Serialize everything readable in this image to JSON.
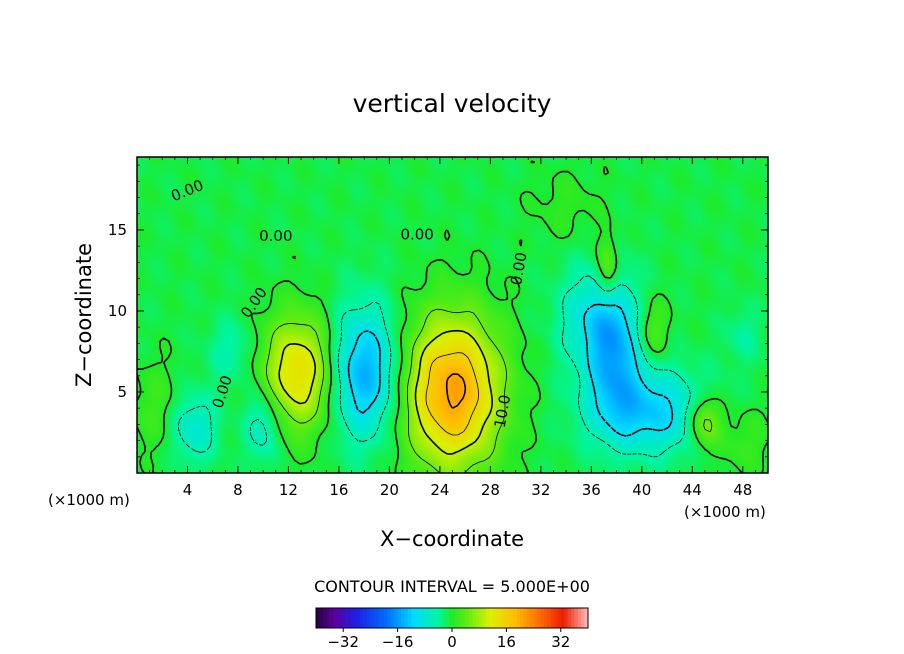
{
  "chart_data": {
    "type": "heatmap",
    "title": "vertical velocity",
    "xlabel": "X−coordinate",
    "ylabel": "Z−coordinate",
    "x_unit": "(×1000 m)",
    "z_unit": "(×1000 m)",
    "xlim": [
      0,
      50
    ],
    "ylim": [
      0,
      19.5
    ],
    "x_ticks": [
      4,
      8,
      12,
      16,
      20,
      24,
      28,
      32,
      36,
      40,
      44,
      48
    ],
    "y_ticks": [
      5,
      10,
      15
    ],
    "x_tick_labels": [
      "4",
      "8",
      "12",
      "16",
      "20",
      "24",
      "28",
      "32",
      "36",
      "40",
      "44",
      "48"
    ],
    "y_tick_labels": [
      "5",
      "10",
      "15"
    ],
    "contour_interval": "CONTOUR INTERVAL = 5.000E+00",
    "contour_labels": [
      {
        "text": "0.00",
        "x": 4.0,
        "z": 17.4,
        "angle": -22
      },
      {
        "text": "0.00",
        "x": 11.0,
        "z": 14.6,
        "angle": 0
      },
      {
        "text": "0.00",
        "x": 22.2,
        "z": 14.7,
        "angle": 0
      },
      {
        "text": "0.00",
        "x": 30.3,
        "z": 12.6,
        "angle": -80
      },
      {
        "text": "0.00",
        "x": 9.3,
        "z": 10.5,
        "angle": -55
      },
      {
        "text": "0.00",
        "x": 6.8,
        "z": 5.0,
        "angle": -72
      },
      {
        "text": "10.0",
        "x": 29.0,
        "z": 3.8,
        "angle": -80
      }
    ],
    "field": {
      "background": -1,
      "features": [
        {
          "x": 4.5,
          "z": 2.8,
          "amp": -7,
          "sx": 1.3,
          "sz": 1.5
        },
        {
          "x": 10.0,
          "z": 3.0,
          "amp": -7,
          "sx": 1.0,
          "sz": 1.6
        },
        {
          "x": 7.5,
          "z": 7.5,
          "amp": -4,
          "sx": 1.3,
          "sz": 1.4
        },
        {
          "x": 12.8,
          "z": 6.2,
          "amp": 15,
          "sx": 2.0,
          "sz": 2.4
        },
        {
          "x": 18.0,
          "z": 6.2,
          "amp": -14,
          "sx": 1.9,
          "sz": 2.8
        },
        {
          "x": 25.0,
          "z": 5.0,
          "amp": 22,
          "sx": 2.6,
          "sz": 3.2
        },
        {
          "x": 37.8,
          "z": 7.8,
          "amp": -13,
          "sx": 1.5,
          "sz": 2.8
        },
        {
          "x": 40.5,
          "z": 3.8,
          "amp": -11,
          "sx": 3.2,
          "sz": 1.8
        },
        {
          "x": 35.5,
          "z": 9.5,
          "amp": -6,
          "sx": 1.7,
          "sz": 2.2
        },
        {
          "x": 37.3,
          "z": 12.5,
          "amp": 8,
          "sx": 0.6,
          "sz": 1.4
        },
        {
          "x": 40.8,
          "z": 8.8,
          "amp": 5,
          "sx": 0.9,
          "sz": 1.3
        },
        {
          "x": 45.0,
          "z": 3.2,
          "amp": 10,
          "sx": 0.9,
          "sz": 1.1
        },
        {
          "x": 48.0,
          "z": 2.0,
          "amp": 3,
          "sx": 1.5,
          "sz": 1.5
        },
        {
          "x": 1.5,
          "z": 4.0,
          "amp": 3,
          "sx": 1.4,
          "sz": 2.0
        },
        {
          "x": 48.0,
          "z": 8.5,
          "amp": -3,
          "sx": 1.0,
          "sz": 1.2
        },
        {
          "x": 34.0,
          "z": 16.5,
          "amp": 2,
          "sx": 2.0,
          "sz": 1.5
        }
      ]
    },
    "colorbar": {
      "range": [
        -40,
        40
      ],
      "ticks": [
        -32,
        -16,
        0,
        16,
        32
      ],
      "tick_labels": [
        "−32",
        "−16",
        "0",
        "16",
        "32"
      ]
    }
  }
}
